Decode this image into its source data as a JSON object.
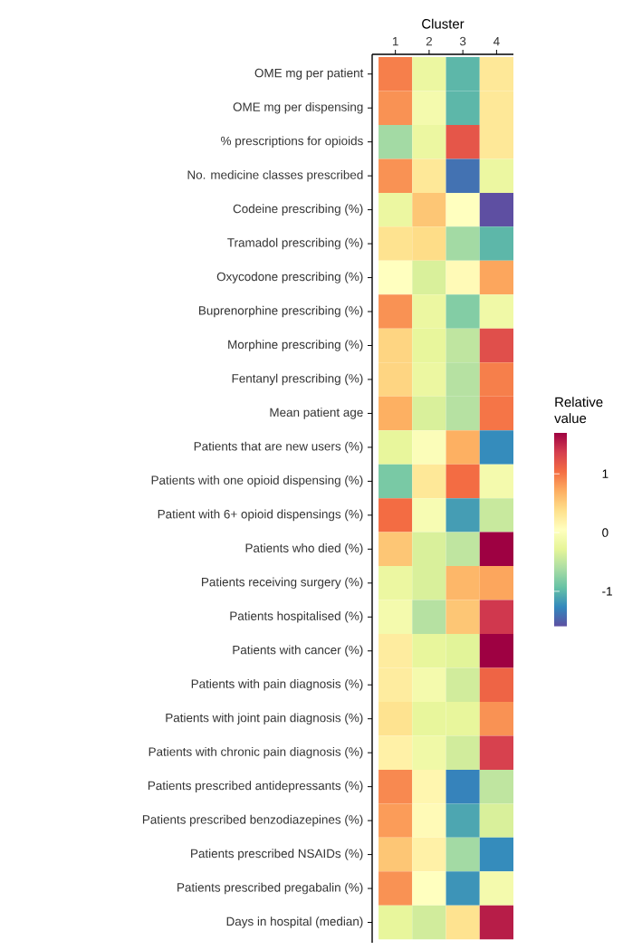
{
  "chart_data": {
    "type": "heatmap",
    "xlabel": "Cluster",
    "clabel": "Relative value",
    "categories": [
      "1",
      "2",
      "3",
      "4"
    ],
    "y_categories": [
      "OME mg per patient",
      "OME mg per dispensing",
      "% prescriptions for opioids",
      "No. medicine classes prescribed",
      "Codeine prescribing (%)",
      "Tramadol prescribing (%)",
      "Oxycodone prescribing (%)",
      "Buprenorphine prescribing (%)",
      "Morphine prescribing (%)",
      "Fentanyl prescribing (%)",
      "Mean patient age",
      "Patients that are new users (%)",
      "Patients with one opioid dispensing (%)",
      "Patient with 6+ opioid dispensings (%)",
      "Patients who died (%)",
      "Patients receiving surgery (%)",
      "Patients hospitalised (%)",
      "Patients with cancer (%)",
      "Patients with pain diagnosis (%)",
      "Patients with joint pain diagnosis (%)",
      "Patients with chronic pain diagnosis (%)",
      "Patients prescribed antidepressants (%)",
      "Patients prescribed benzodiazepines (%)",
      "Patients prescribed NSAIDs (%)",
      "Patients prescribed pregabalin (%)",
      "Days in hospital (median)"
    ],
    "cells": [
      [
        0.95,
        -0.2,
        -1.0,
        0.3
      ],
      [
        0.85,
        -0.1,
        -1.0,
        0.3
      ],
      [
        -0.65,
        -0.2,
        1.2,
        0.3
      ],
      [
        0.85,
        0.3,
        -1.4,
        -0.2
      ],
      [
        -0.2,
        0.55,
        0.05,
        -1.6
      ],
      [
        0.35,
        0.4,
        -0.65,
        -1.0
      ],
      [
        0.05,
        -0.35,
        0.1,
        0.75
      ],
      [
        0.85,
        -0.2,
        -0.8,
        -0.15
      ],
      [
        0.45,
        -0.25,
        -0.5,
        1.25
      ],
      [
        0.45,
        -0.2,
        -0.55,
        0.95
      ],
      [
        0.7,
        -0.35,
        -0.55,
        1.0
      ],
      [
        -0.25,
        0.0,
        0.7,
        -1.25
      ],
      [
        -0.85,
        0.3,
        1.05,
        -0.1
      ],
      [
        1.05,
        -0.05,
        -1.15,
        -0.45
      ],
      [
        0.55,
        -0.35,
        -0.5,
        1.7
      ],
      [
        -0.2,
        -0.35,
        0.65,
        0.75
      ],
      [
        -0.1,
        -0.55,
        0.55,
        1.4
      ],
      [
        0.25,
        -0.25,
        -0.3,
        1.7
      ],
      [
        0.25,
        -0.1,
        -0.4,
        1.1
      ],
      [
        0.35,
        -0.25,
        -0.25,
        0.85
      ],
      [
        0.2,
        -0.15,
        -0.4,
        1.35
      ],
      [
        0.9,
        0.15,
        -1.3,
        -0.5
      ],
      [
        0.8,
        0.1,
        -1.1,
        -0.35
      ],
      [
        0.55,
        0.2,
        -0.65,
        -1.25
      ],
      [
        0.85,
        0.05,
        -1.2,
        -0.1
      ],
      [
        -0.25,
        -0.4,
        0.35,
        1.55
      ]
    ],
    "clim": [
      -1.6,
      1.7
    ],
    "cticks": [
      -1,
      0,
      1
    ]
  }
}
